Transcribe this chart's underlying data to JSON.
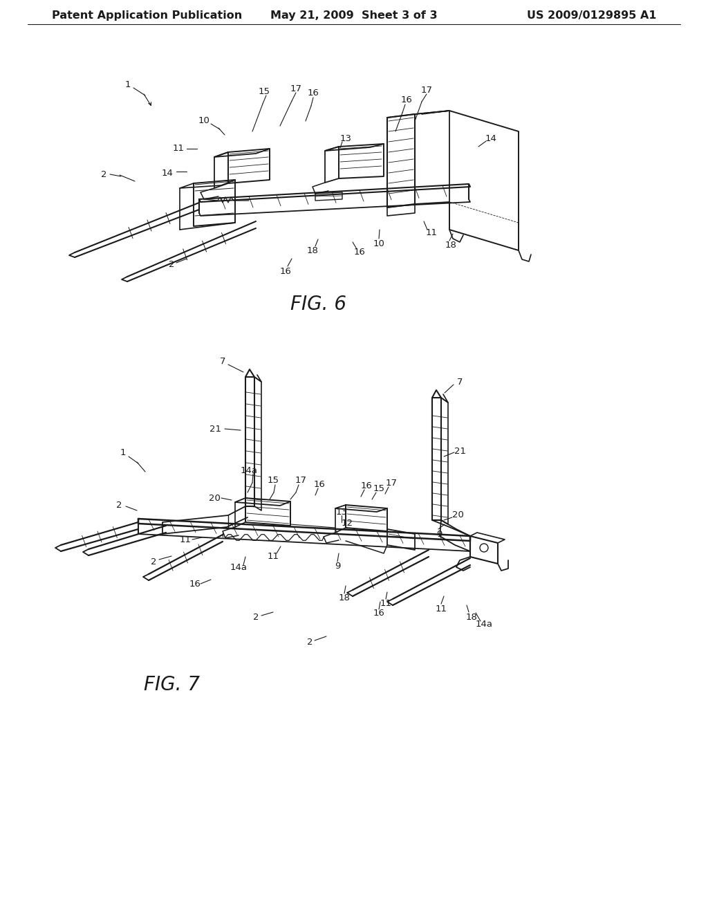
{
  "background_color": "#ffffff",
  "header_left": "Patent Application Publication",
  "header_center": "May 21, 2009  Sheet 3 of 3",
  "header_right": "US 2009/0129895 A1",
  "line_color": "#1a1a1a",
  "label_fontsize": 9.5,
  "fig_label_fontsize": 20,
  "header_fontsize": 11.5
}
